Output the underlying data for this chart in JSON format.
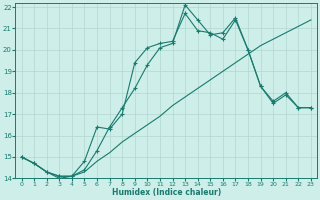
{
  "xlabel": "Humidex (Indice chaleur)",
  "ylabel": "",
  "bg_color": "#cdeee9",
  "line_color": "#1a7a6e",
  "grid_color": "#b0d8d0",
  "xlim": [
    -0.5,
    23.5
  ],
  "ylim": [
    14,
    22.2
  ],
  "xticks": [
    0,
    1,
    2,
    3,
    4,
    5,
    6,
    7,
    8,
    9,
    10,
    11,
    12,
    13,
    14,
    15,
    16,
    17,
    18,
    19,
    20,
    21,
    22,
    23
  ],
  "yticks": [
    14,
    15,
    16,
    17,
    18,
    19,
    20,
    21,
    22
  ],
  "line1_x": [
    0,
    1,
    2,
    3,
    4,
    5,
    6,
    7,
    8,
    9,
    10,
    11,
    12,
    13,
    14,
    15,
    16,
    17,
    18,
    19,
    20,
    21,
    22,
    23
  ],
  "line1_y": [
    15.0,
    14.7,
    14.3,
    14.1,
    14.1,
    14.4,
    15.3,
    16.4,
    17.3,
    18.2,
    19.3,
    20.1,
    20.3,
    22.1,
    21.4,
    20.7,
    20.8,
    21.5,
    20.0,
    18.3,
    17.6,
    18.0,
    17.3,
    17.3
  ],
  "line2_x": [
    0,
    1,
    2,
    3,
    4,
    5,
    6,
    7,
    8,
    9,
    10,
    11,
    12,
    13,
    14,
    15,
    16,
    17,
    18,
    19,
    20,
    21,
    22,
    23
  ],
  "line2_y": [
    15.0,
    14.7,
    14.3,
    14.1,
    14.1,
    14.8,
    16.4,
    16.3,
    17.0,
    19.4,
    20.1,
    20.3,
    20.4,
    21.7,
    20.9,
    20.8,
    20.5,
    21.4,
    20.0,
    18.3,
    17.5,
    17.9,
    17.3,
    17.3
  ],
  "line3_x": [
    0,
    1,
    2,
    3,
    4,
    5,
    6,
    7,
    8,
    9,
    10,
    11,
    12,
    13,
    14,
    15,
    16,
    17,
    18,
    19,
    20,
    21,
    22,
    23
  ],
  "line3_y": [
    15.0,
    14.7,
    14.3,
    14.0,
    14.1,
    14.3,
    14.8,
    15.2,
    15.7,
    16.1,
    16.5,
    16.9,
    17.4,
    17.8,
    18.2,
    18.6,
    19.0,
    19.4,
    19.8,
    20.2,
    20.5,
    20.8,
    21.1,
    21.4
  ]
}
